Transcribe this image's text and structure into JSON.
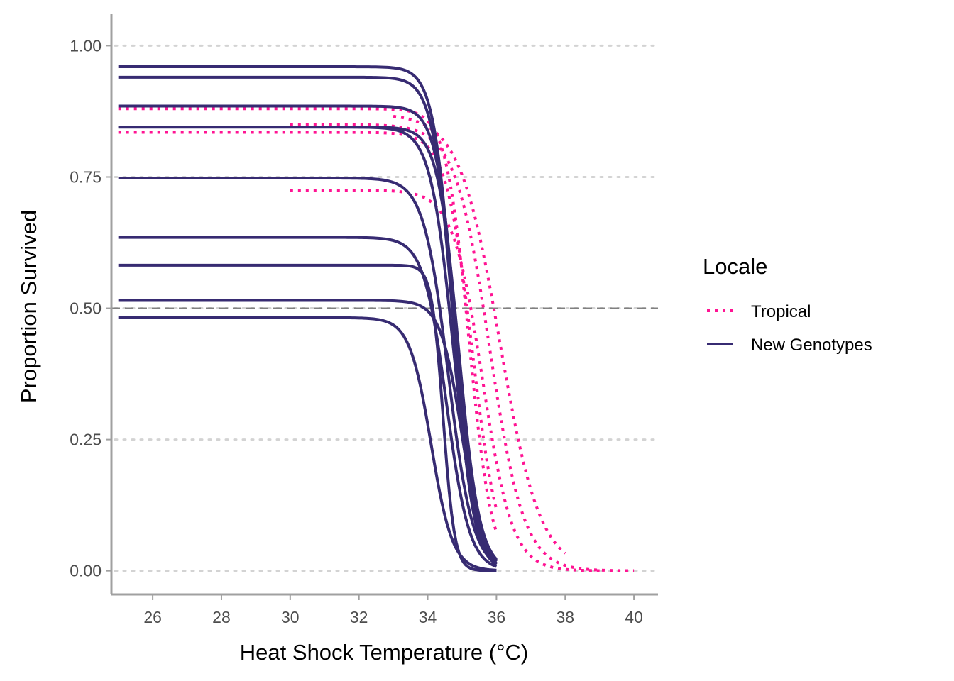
{
  "chart_data": {
    "type": "line",
    "title": "",
    "xlabel": "Heat Shock Temperature (°C)",
    "ylabel": "Proportion Survived",
    "xlim": [
      24.8,
      40.7
    ],
    "ylim": [
      -0.045,
      1.06
    ],
    "x_ticks": [
      26,
      28,
      30,
      32,
      34,
      36,
      38,
      40
    ],
    "x_tick_labels": [
      "26",
      "28",
      "30",
      "32",
      "34",
      "36",
      "38",
      "40"
    ],
    "y_ticks": [
      0,
      0.25,
      0.5,
      0.75,
      1
    ],
    "y_tick_labels": [
      "0.00",
      "0.25",
      "0.50",
      "0.75",
      "1.00"
    ],
    "grid": "horizontal dotted major gridlines",
    "reference_line": {
      "y": 0.5,
      "style": "dashed",
      "color": "#808080"
    },
    "legend": {
      "title": "Locale",
      "placement": "right",
      "entries": [
        {
          "label": "Tropical",
          "color": "#ff1493",
          "style": "dotted"
        },
        {
          "label": "New Genotypes",
          "color": "#372b72",
          "style": "solid"
        }
      ]
    },
    "curve_model": "logistic: y = top / (1 + exp(k * (x - x50)))",
    "series": [
      {
        "group": "Tropical",
        "x_range": [
          25,
          36
        ],
        "top": 0.88,
        "x50": 35.2,
        "k": 3.0
      },
      {
        "group": "Tropical",
        "x_range": [
          25,
          36
        ],
        "top": 0.835,
        "x50": 35.3,
        "k": 2.6
      },
      {
        "group": "Tropical",
        "x_range": [
          30,
          40
        ],
        "top": 0.85,
        "x50": 35.8,
        "k": 2.0
      },
      {
        "group": "Tropical",
        "x_range": [
          33,
          38
        ],
        "top": 0.87,
        "x50": 36.1,
        "k": 1.7
      },
      {
        "group": "Tropical",
        "x_range": [
          30,
          39
        ],
        "top": 0.725,
        "x50": 35.6,
        "k": 2.3
      },
      {
        "group": "New Genotypes",
        "x_range": [
          25,
          36
        ],
        "top": 0.96,
        "x50": 34.75,
        "k": 3.5
      },
      {
        "group": "New Genotypes",
        "x_range": [
          25,
          36
        ],
        "top": 0.94,
        "x50": 34.75,
        "k": 3.4
      },
      {
        "group": "New Genotypes",
        "x_range": [
          25,
          36
        ],
        "top": 0.885,
        "x50": 34.85,
        "k": 3.4
      },
      {
        "group": "New Genotypes",
        "x_range": [
          25,
          36
        ],
        "top": 0.845,
        "x50": 34.9,
        "k": 3.3
      },
      {
        "group": "New Genotypes",
        "x_range": [
          25,
          36
        ],
        "top": 0.845,
        "x50": 34.75,
        "k": 3.0
      },
      {
        "group": "New Genotypes",
        "x_range": [
          25,
          36
        ],
        "top": 0.748,
        "x50": 34.6,
        "k": 2.8
      },
      {
        "group": "New Genotypes",
        "x_range": [
          25,
          36
        ],
        "top": 0.635,
        "x50": 34.55,
        "k": 3.0
      },
      {
        "group": "New Genotypes",
        "x_range": [
          25,
          36
        ],
        "top": 0.582,
        "x50": 34.45,
        "k": 6.0
      },
      {
        "group": "New Genotypes",
        "x_range": [
          25,
          36
        ],
        "top": 0.515,
        "x50": 35.0,
        "k": 3.2
      },
      {
        "group": "New Genotypes",
        "x_range": [
          25,
          36
        ],
        "top": 0.482,
        "x50": 34.1,
        "k": 3.2
      }
    ]
  }
}
